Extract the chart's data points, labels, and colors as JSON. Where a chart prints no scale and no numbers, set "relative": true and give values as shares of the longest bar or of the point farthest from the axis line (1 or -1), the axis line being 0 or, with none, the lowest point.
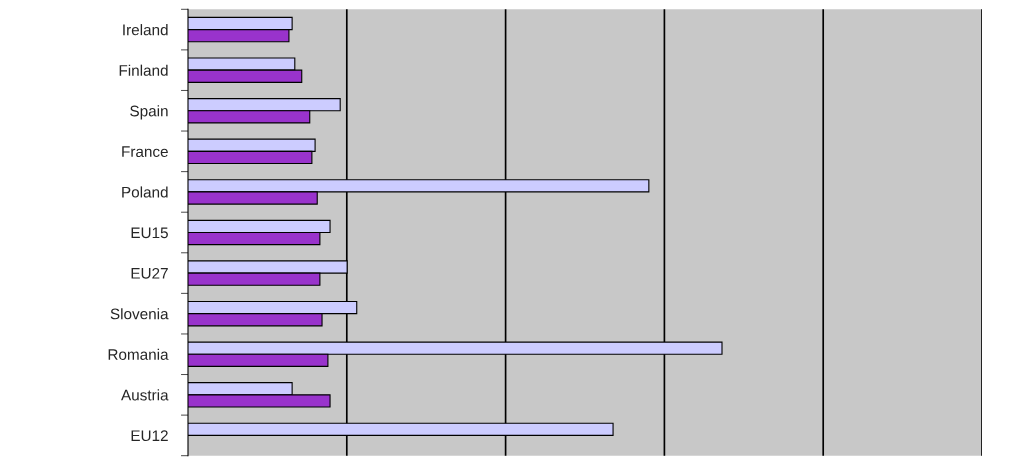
{
  "chart_data": {
    "type": "bar",
    "orientation": "horizontal",
    "relative": true,
    "grid": "x",
    "categories": [
      "Ireland",
      "Finland",
      "Spain",
      "France",
      "Poland",
      "EU15",
      "EU27",
      "Slovenia",
      "Romania",
      "Austria",
      "EU12"
    ],
    "series": [
      {
        "color": "#ccccff",
        "values": [
          0.195,
          0.2,
          0.285,
          0.238,
          0.863,
          0.266,
          0.298,
          0.316,
          1,
          0.195,
          0.796
        ]
      },
      {
        "color": "#9933cc",
        "values": [
          0.189,
          0.213,
          0.228,
          0.232,
          0.242,
          0.247,
          0.247,
          0.251,
          0.262,
          0.266,
          null
        ]
      }
    ]
  }
}
